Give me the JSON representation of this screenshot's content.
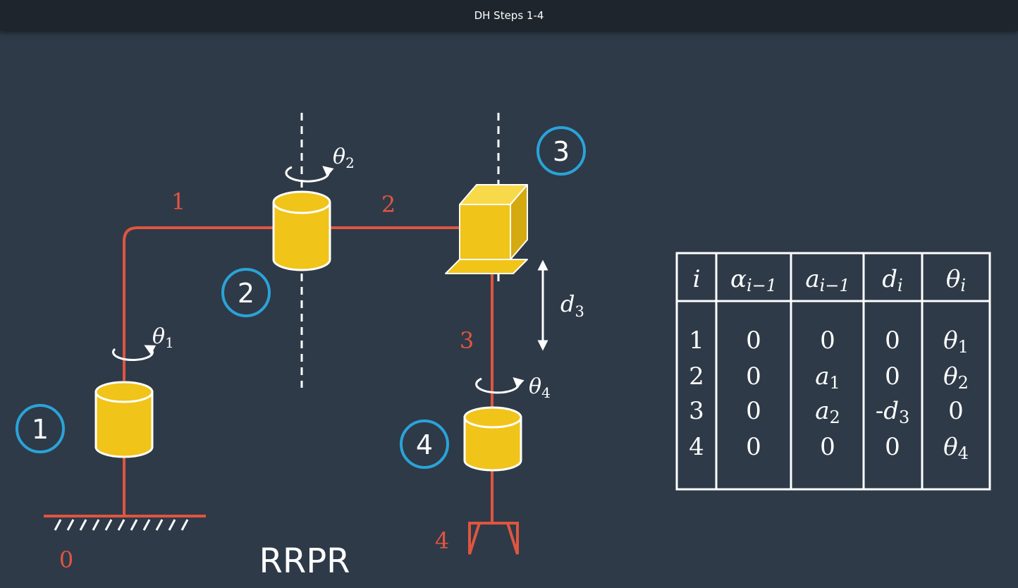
{
  "window": {
    "title": "DH Steps 1-4"
  },
  "colors": {
    "background": "#2e3a48",
    "link": "#e0553f",
    "joint": "#f0c419",
    "badge": "#2aa3d8",
    "text": "#ffffff"
  },
  "robot": {
    "name": "RRPR",
    "link_labels": [
      "0",
      "1",
      "2",
      "3",
      "4"
    ],
    "joint_badges": [
      "1",
      "2",
      "3",
      "4"
    ],
    "angle_symbols": [
      "θ1",
      "θ2",
      "θ4"
    ],
    "prismatic_variable": "d3"
  },
  "dh_table": {
    "headers": [
      "i",
      "αi−1",
      "ai−1",
      "di",
      "θi"
    ],
    "rows": [
      [
        "1",
        "0",
        "0",
        "0",
        "θ1"
      ],
      [
        "2",
        "0",
        "a1",
        "0",
        "θ2"
      ],
      [
        "3",
        "0",
        "a2",
        "-d3",
        "0"
      ],
      [
        "4",
        "0",
        "0",
        "0",
        "θ4"
      ]
    ]
  },
  "icons": [
    "rotation-arrow-icon",
    "double-arrow-icon",
    "ground-hatch-icon",
    "gripper-icon"
  ]
}
